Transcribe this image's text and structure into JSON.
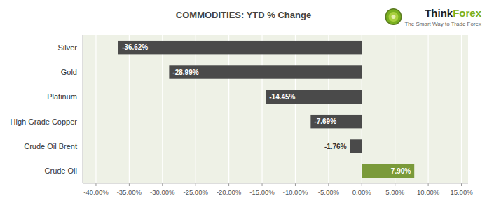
{
  "chart_data": {
    "type": "bar",
    "orientation": "horizontal",
    "title": "COMMODITIES: YTD % Change",
    "categories": [
      "Crude Oil",
      "Crude Oil Brent",
      "High Grade Copper",
      "Platinum",
      "Gold",
      "Silver"
    ],
    "values": [
      7.9,
      -1.76,
      -7.69,
      -14.45,
      -28.99,
      -36.62
    ],
    "value_labels": [
      "7.90%",
      "-1.76%",
      "-7.69%",
      "-14.45%",
      "-28.99%",
      "-36.62%"
    ],
    "data_labels": true,
    "colors": [
      "#7a9a3a",
      "#4a4a4a",
      "#4a4a4a",
      "#4a4a4a",
      "#4a4a4a",
      "#4a4a4a"
    ],
    "xlim": [
      -42,
      16
    ],
    "xticks": [
      {
        "value": -40,
        "label": "-40.00%"
      },
      {
        "value": -35,
        "label": "-35.00%"
      },
      {
        "value": -30,
        "label": "-30.00%"
      },
      {
        "value": -25,
        "label": "-25.00%"
      },
      {
        "value": -20,
        "label": "-20.00%"
      },
      {
        "value": -15,
        "label": "-15.00%"
      },
      {
        "value": -10,
        "label": "-10.00%"
      },
      {
        "value": -5,
        "label": "-5.00%"
      },
      {
        "value": 0,
        "label": "0.00%"
      },
      {
        "value": 5,
        "label": "5.00%"
      },
      {
        "value": 10,
        "label": "10.00%"
      },
      {
        "value": 15,
        "label": "15.00%"
      }
    ],
    "grid": true,
    "annotations": [
      "Think",
      "Forex",
      "The Smart Way to Trade Forex"
    ]
  }
}
